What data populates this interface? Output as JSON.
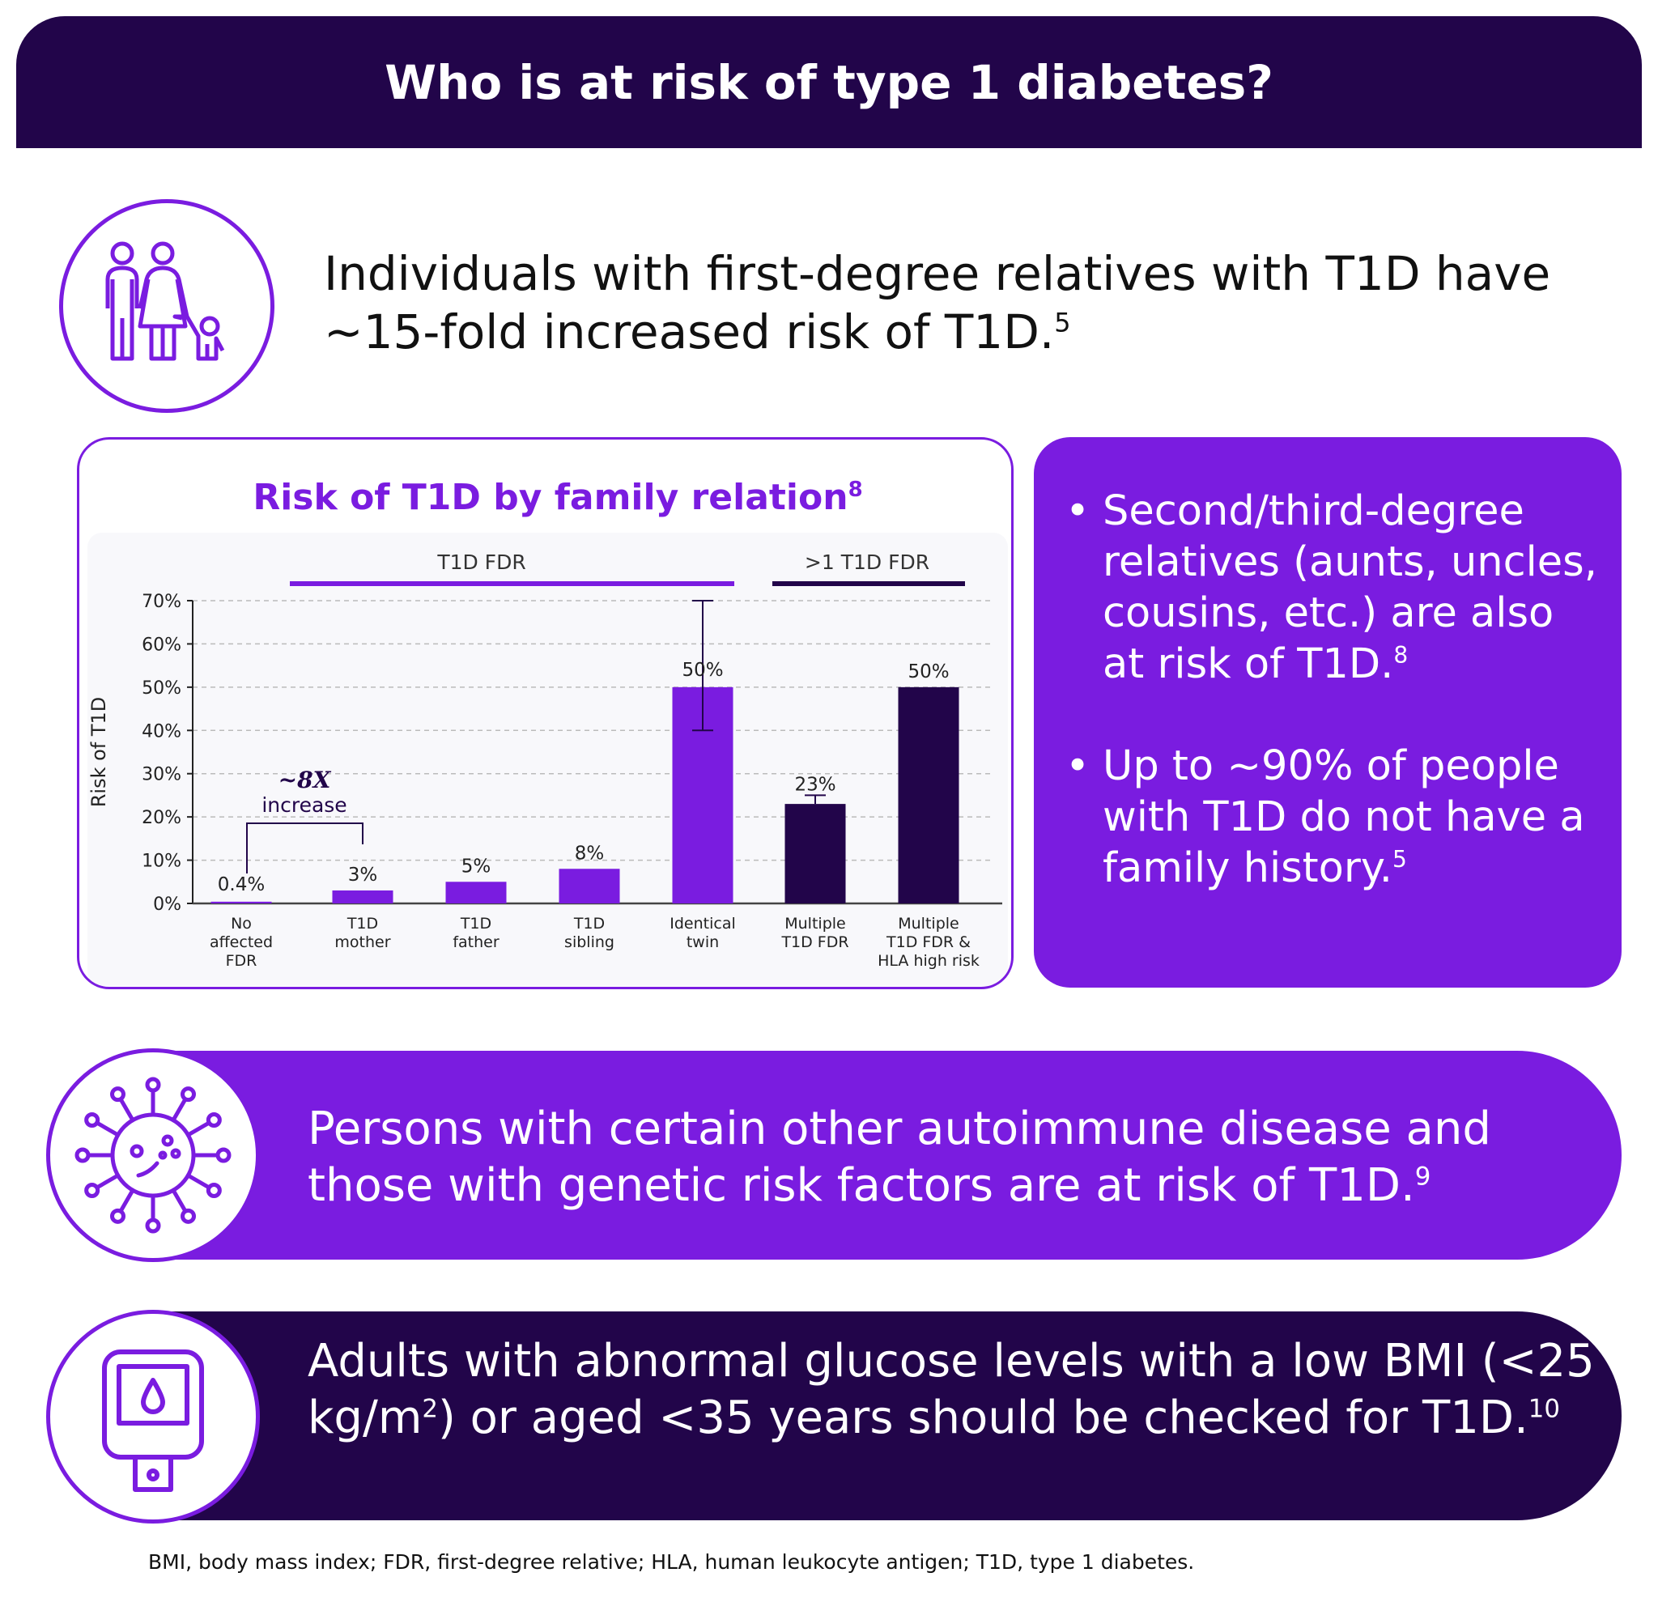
{
  "header": {
    "title": "Who is at risk of type 1 diabetes?"
  },
  "family": {
    "icon": "family-icon",
    "text": "Individuals with first-degree relatives with T1D have ~15-fold increased risk of T1D.",
    "ref": "5"
  },
  "chart_data": {
    "type": "bar",
    "title": "Risk of T1D by family relation",
    "title_ref": "8",
    "ylabel": "Risk of T1D",
    "ylim": [
      0,
      70
    ],
    "yticks": [
      "0%",
      "10%",
      "20%",
      "30%",
      "40%",
      "50%",
      "60%",
      "70%"
    ],
    "grid": true,
    "categories": [
      "No affected FDR",
      "T1D mother",
      "T1D father",
      "T1D sibling",
      "Identical twin",
      "Multiple T1D FDR",
      "Multiple T1D FDR & HLA high risk"
    ],
    "category_lines": [
      [
        "No",
        "affected",
        "FDR"
      ],
      [
        "T1D",
        "mother"
      ],
      [
        "T1D",
        "father"
      ],
      [
        "T1D",
        "sibling"
      ],
      [
        "Identical",
        "twin"
      ],
      [
        "Multiple",
        "T1D FDR"
      ],
      [
        "Multiple",
        "T1D FDR &",
        "HLA high risk"
      ]
    ],
    "values": [
      0.4,
      3,
      5,
      8,
      50,
      23,
      50
    ],
    "value_labels": [
      "0.4%",
      "3%",
      "5%",
      "8%",
      "50%",
      "23%",
      "50%"
    ],
    "error_bars": [
      null,
      null,
      null,
      null,
      [
        40,
        70
      ],
      [
        23,
        25
      ],
      null
    ],
    "bar_colors": [
      "#7a1ce0",
      "#7a1ce0",
      "#7a1ce0",
      "#7a1ce0",
      "#7a1ce0",
      "#22054a",
      "#22054a"
    ],
    "groups": [
      {
        "label": "T1D FDR",
        "color": "#7a1ce0"
      },
      {
        "label": ">1 T1D FDR",
        "color": "#22054a"
      }
    ],
    "annotation": {
      "line1": "~8X",
      "line2": "increase"
    }
  },
  "bullets": [
    {
      "text": "Second/third-degree relatives (aunts, uncles, cousins, etc.) are also at risk of T1D.",
      "ref": "8"
    },
    {
      "text": "Up to ~90% of people with T1D do not have a family history.",
      "ref": "5"
    }
  ],
  "autoimmune": {
    "icon": "virus-icon",
    "text": "Persons with certain other autoimmune disease and those with genetic risk factors are at risk of T1D.",
    "ref": "9"
  },
  "glucose": {
    "icon": "glucose-meter-icon",
    "text_a": "Adults with abnormal glucose levels with a low BMI (<25 kg/m",
    "sup_a": "2",
    "text_b": ") or aged <35 years should be checked for T1D.",
    "ref": "10"
  },
  "footnote": "BMI, body mass index; FDR, first-degree relative; HLA, human leukocyte antigen; T1D, type 1 diabetes.",
  "colors": {
    "purple": "#7a1ce0",
    "dark": "#22054a"
  }
}
